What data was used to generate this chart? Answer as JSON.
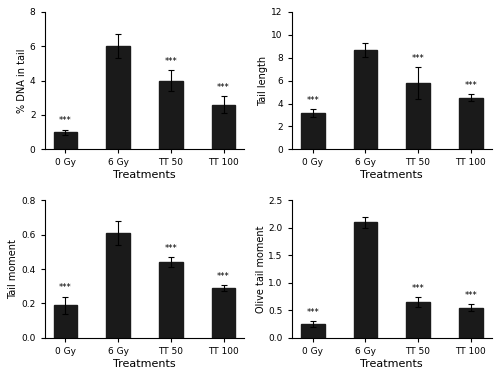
{
  "categories": [
    "0 Gy",
    "6 Gy",
    "TT 50",
    "TT 100"
  ],
  "subplots": [
    {
      "ylabel": "% DNA in tail",
      "xlabel": "Treatments",
      "values": [
        1.0,
        6.0,
        4.0,
        2.6
      ],
      "errors": [
        0.15,
        0.7,
        0.6,
        0.5
      ],
      "ylim": [
        0,
        8
      ],
      "yticks": [
        0,
        2,
        4,
        6,
        8
      ],
      "sig": [
        "***",
        "",
        "***",
        "***"
      ]
    },
    {
      "ylabel": "Tail length",
      "xlabel": "Treatments",
      "values": [
        3.2,
        8.7,
        5.8,
        4.5
      ],
      "errors": [
        0.35,
        0.6,
        1.4,
        0.3
      ],
      "ylim": [
        0,
        12
      ],
      "yticks": [
        0,
        2,
        4,
        6,
        8,
        10,
        12
      ],
      "sig": [
        "***",
        "",
        "***",
        "***"
      ]
    },
    {
      "ylabel": "Tail moment",
      "xlabel": "Treatments",
      "values": [
        0.19,
        0.61,
        0.44,
        0.29
      ],
      "errors": [
        0.05,
        0.07,
        0.03,
        0.015
      ],
      "ylim": [
        0,
        0.8
      ],
      "yticks": [
        0,
        0.2,
        0.4,
        0.6,
        0.8
      ],
      "sig": [
        "***",
        "",
        "***",
        "***"
      ]
    },
    {
      "ylabel": "Olive tail moment",
      "xlabel": "Treatments",
      "values": [
        0.25,
        2.1,
        0.65,
        0.55
      ],
      "errors": [
        0.06,
        0.1,
        0.09,
        0.06
      ],
      "ylim": [
        0,
        2.5
      ],
      "yticks": [
        0,
        0.5,
        1.0,
        1.5,
        2.0,
        2.5
      ],
      "sig": [
        "***",
        "",
        "***",
        "***"
      ]
    }
  ],
  "bar_color": "#1a1a1a",
  "bar_width": 0.45,
  "sig_fontsize": 6,
  "tick_fontsize": 6.5,
  "xlabel_fontsize": 8,
  "ylabel_fontsize": 7,
  "background_color": "#ffffff"
}
